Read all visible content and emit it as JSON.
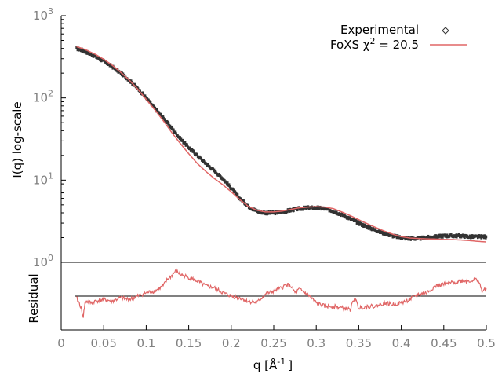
{
  "chart_data": [
    {
      "type": "scatter",
      "panel": "main",
      "yscale": "log",
      "xlim": [
        0,
        0.5
      ],
      "ylim": [
        1,
        1000
      ],
      "ylabel": "I(q) log-scale",
      "y_ticks": [
        {
          "value": 1,
          "base": "10",
          "exp": "0"
        },
        {
          "value": 10,
          "base": "10",
          "exp": "1"
        },
        {
          "value": 100,
          "base": "10",
          "exp": "2"
        },
        {
          "value": 1000,
          "base": "10",
          "exp": "3"
        }
      ],
      "legend_position": "top-right",
      "series": [
        {
          "name": "Experimental",
          "kind": "points",
          "color": "#333333",
          "x": [
            0.018,
            0.025,
            0.03,
            0.04,
            0.05,
            0.06,
            0.07,
            0.08,
            0.09,
            0.1,
            0.11,
            0.12,
            0.13,
            0.14,
            0.15,
            0.16,
            0.17,
            0.18,
            0.19,
            0.2,
            0.21,
            0.22,
            0.23,
            0.24,
            0.25,
            0.26,
            0.27,
            0.28,
            0.29,
            0.3,
            0.31,
            0.32,
            0.33,
            0.34,
            0.35,
            0.36,
            0.37,
            0.38,
            0.39,
            0.4,
            0.41,
            0.42,
            0.43,
            0.44,
            0.45,
            0.46,
            0.47,
            0.48,
            0.49,
            0.5
          ],
          "y": [
            400,
            380,
            360,
            320,
            280,
            240,
            200,
            165,
            130,
            100,
            75,
            57,
            43,
            32,
            25,
            20,
            16,
            13,
            10.5,
            8.0,
            6.0,
            4.8,
            4.2,
            4.0,
            4.0,
            4.1,
            4.3,
            4.5,
            4.6,
            4.6,
            4.5,
            4.2,
            3.8,
            3.4,
            3.0,
            2.7,
            2.45,
            2.25,
            2.1,
            2.0,
            1.95,
            1.95,
            2.0,
            2.05,
            2.1,
            2.1,
            2.1,
            2.05,
            2.05,
            2.05
          ]
        },
        {
          "name": "FoXS χ² = 20.5",
          "legend_main": "FoXS χ",
          "legend_sup": "2",
          "legend_rest": " = 20.5",
          "kind": "line",
          "color": "#e06666",
          "x": [
            0.018,
            0.025,
            0.03,
            0.04,
            0.05,
            0.06,
            0.07,
            0.08,
            0.09,
            0.1,
            0.11,
            0.12,
            0.13,
            0.14,
            0.15,
            0.16,
            0.17,
            0.18,
            0.19,
            0.2,
            0.21,
            0.22,
            0.23,
            0.24,
            0.25,
            0.26,
            0.27,
            0.28,
            0.29,
            0.3,
            0.31,
            0.32,
            0.33,
            0.34,
            0.35,
            0.36,
            0.37,
            0.38,
            0.39,
            0.4,
            0.41,
            0.42,
            0.43,
            0.44,
            0.45,
            0.46,
            0.47,
            0.48,
            0.49,
            0.5
          ],
          "y": [
            420,
            400,
            380,
            340,
            295,
            250,
            205,
            165,
            128,
            96,
            72,
            53,
            38,
            28,
            21,
            16,
            12.8,
            10.5,
            8.8,
            7.2,
            5.8,
            4.8,
            4.3,
            4.1,
            4.1,
            4.2,
            4.4,
            4.6,
            4.7,
            4.75,
            4.7,
            4.5,
            4.1,
            3.7,
            3.3,
            2.95,
            2.65,
            2.4,
            2.2,
            2.05,
            1.98,
            1.95,
            1.93,
            1.92,
            1.9,
            1.89,
            1.87,
            1.84,
            1.8,
            1.77
          ]
        }
      ]
    },
    {
      "type": "line",
      "panel": "residual",
      "xlim": [
        0,
        0.5
      ],
      "ylim": [
        -1,
        1
      ],
      "xlabel": "q [Å",
      "xlabel_sup": "-1",
      "xlabel_end": "]",
      "ylabel": "Residual",
      "x_ticks": [
        "0",
        "0.05",
        "0.1",
        "0.15",
        "0.2",
        "0.25",
        "0.3",
        "0.35",
        "0.4",
        "0.45",
        "0.5"
      ],
      "x_tick_values": [
        0,
        0.05,
        0.1,
        0.15,
        0.2,
        0.25,
        0.3,
        0.35,
        0.4,
        0.45,
        0.5
      ],
      "zero_line": 0,
      "series": [
        {
          "name": "",
          "color": "#e06666",
          "x": [
            0.018,
            0.022,
            0.026,
            0.028,
            0.03,
            0.035,
            0.04,
            0.05,
            0.06,
            0.07,
            0.08,
            0.09,
            0.1,
            0.11,
            0.12,
            0.125,
            0.13,
            0.135,
            0.14,
            0.15,
            0.16,
            0.17,
            0.18,
            0.19,
            0.2,
            0.21,
            0.22,
            0.23,
            0.24,
            0.25,
            0.26,
            0.265,
            0.27,
            0.275,
            0.28,
            0.29,
            0.3,
            0.31,
            0.32,
            0.33,
            0.34,
            0.345,
            0.35,
            0.36,
            0.37,
            0.38,
            0.39,
            0.4,
            0.41,
            0.42,
            0.43,
            0.44,
            0.45,
            0.46,
            0.47,
            0.48,
            0.49,
            0.495,
            0.5
          ],
          "y": [
            -0.05,
            -0.25,
            -0.6,
            -0.2,
            -0.15,
            -0.2,
            -0.15,
            -0.1,
            -0.15,
            -0.05,
            -0.1,
            0.0,
            0.1,
            0.15,
            0.3,
            0.5,
            0.6,
            0.75,
            0.65,
            0.55,
            0.45,
            0.3,
            0.25,
            0.1,
            0.0,
            -0.05,
            -0.15,
            -0.2,
            0.05,
            0.15,
            0.25,
            0.35,
            0.3,
            0.1,
            0.2,
            0.05,
            -0.2,
            -0.3,
            -0.3,
            -0.35,
            -0.4,
            -0.05,
            -0.35,
            -0.3,
            -0.3,
            -0.2,
            -0.25,
            -0.2,
            -0.1,
            0.05,
            0.1,
            0.3,
            0.35,
            0.4,
            0.45,
            0.45,
            0.5,
            0.15,
            0.2
          ]
        }
      ]
    }
  ]
}
